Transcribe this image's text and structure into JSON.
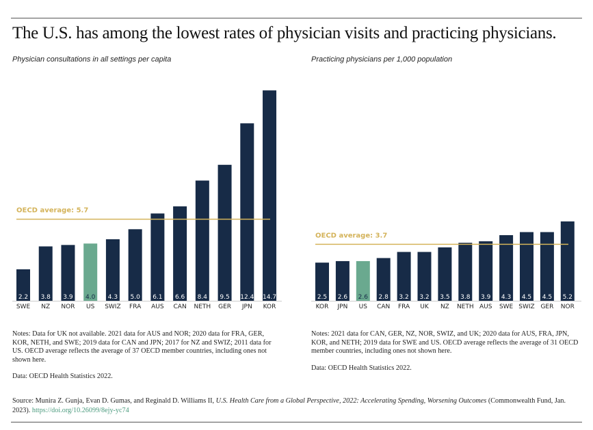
{
  "title": "The U.S. has among the lowest rates of physician visits and practicing physicians.",
  "chart_data": [
    {
      "type": "bar",
      "subtitle": "Physician consultations in all settings per capita",
      "categories": [
        "SWE",
        "NZ",
        "NOR",
        "US",
        "SWIZ",
        "FRA",
        "AUS",
        "CAN",
        "NETH",
        "GER",
        "JPN",
        "KOR"
      ],
      "values": [
        2.2,
        3.8,
        3.9,
        4.0,
        4.3,
        5.0,
        6.1,
        6.6,
        8.4,
        9.5,
        12.4,
        14.7
      ],
      "value_labels": [
        "2.2",
        "3.8",
        "3.9",
        "4.0",
        "4.3",
        "5.0",
        "6.1",
        "6.6",
        "8.4",
        "9.5",
        "12.4",
        "14.7"
      ],
      "colors": [
        "#172b47",
        "#172b47",
        "#172b47",
        "#6aa98f",
        "#172b47",
        "#172b47",
        "#172b47",
        "#172b47",
        "#172b47",
        "#172b47",
        "#172b47",
        "#172b47"
      ],
      "ylim": [
        0,
        16
      ],
      "reference_line": {
        "value": 5.7,
        "label": "OECD average: 5.7",
        "color": "#d4b35a"
      },
      "notes": "Notes: Data for UK not available. 2021 data for AUS and NOR; 2020 data for FRA, GER, KOR, NETH, and SWE; 2019 data for CAN and JPN; 2017 for NZ and SWIZ; 2011 data for US. OECD average reflects the average of 37 OECD member countries, including ones not shown here.",
      "data_source": "Data: OECD Health Statistics 2022."
    },
    {
      "type": "bar",
      "subtitle": "Practicing physicians per 1,000 population",
      "categories": [
        "KOR",
        "JPN",
        "US",
        "CAN",
        "FRA",
        "UK",
        "NZ",
        "NETH",
        "AUS",
        "SWE",
        "SWIZ",
        "GER",
        "NOR"
      ],
      "values": [
        2.5,
        2.6,
        2.6,
        2.8,
        3.2,
        3.2,
        3.5,
        3.8,
        3.9,
        4.3,
        4.5,
        4.5,
        5.2
      ],
      "value_labels": [
        "2.5",
        "2.6",
        "2.6",
        "2.8",
        "3.2",
        "3.2",
        "3.5",
        "3.8",
        "3.9",
        "4.3",
        "4.5",
        "4.5",
        "5.2"
      ],
      "colors": [
        "#172b47",
        "#172b47",
        "#6aa98f",
        "#172b47",
        "#172b47",
        "#172b47",
        "#172b47",
        "#172b47",
        "#172b47",
        "#172b47",
        "#172b47",
        "#172b47",
        "#172b47"
      ],
      "ylim": [
        0,
        15
      ],
      "reference_line": {
        "value": 3.7,
        "label": "OECD average: 3.7",
        "color": "#d4b35a"
      },
      "notes": "Notes: 2021 data for CAN, GER, NZ, NOR, SWIZ, and UK; 2020 data for AUS, FRA, JPN, KOR, and NETH; 2019 data for SWE and US. OECD average reflects the average of 31 OECD member countries, including ones not shown here.",
      "data_source": "Data: OECD Health Statistics 2022."
    }
  ],
  "source": {
    "prefix": "Source: Munira Z. Gunja, Evan D. Gumas, and Reginald D. Williams II, ",
    "title": "U.S. Health Care from a Global Perspective, 2022: Accelerating Spending, Worsening Outcomes",
    "suffix": " (Commonwealth Fund, Jan. 2023). ",
    "link": "https://doi.org/10.26099/8ejy-yc74"
  }
}
